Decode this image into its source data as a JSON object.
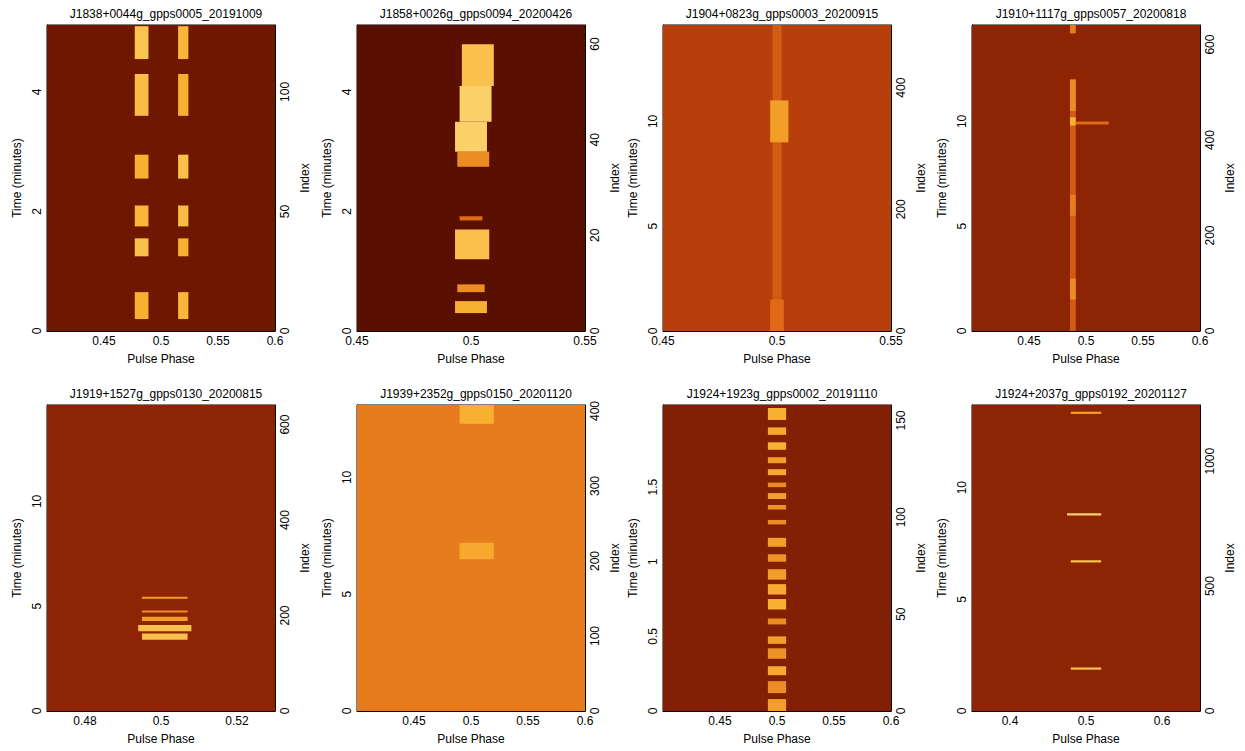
{
  "chart_data": [
    {
      "type": "heatmap",
      "title": "J1838+0044g_gpps0005_20191009",
      "xlabel": "Pulse Phase",
      "ylabel": "Time (minutes)",
      "y2label": "Index",
      "xlim": [
        0.4,
        0.6
      ],
      "xticks": [
        0.45,
        0.5,
        0.55,
        0.6
      ],
      "ylim": [
        0,
        5.12
      ],
      "yticks": [
        0,
        2,
        4
      ],
      "y2lim": [
        0,
        128
      ],
      "y2ticks": [
        0,
        50,
        100
      ],
      "zlim": [
        0,
        1
      ],
      "cells": [
        [
          0.4,
          0.6,
          0,
          5.12,
          0.25
        ],
        [
          0.477,
          0.489,
          0.2,
          0.65,
          0.8
        ],
        [
          0.515,
          0.524,
          0.2,
          0.65,
          0.82
        ],
        [
          0.477,
          0.489,
          1.25,
          1.55,
          0.85
        ],
        [
          0.515,
          0.524,
          1.25,
          1.55,
          0.8
        ],
        [
          0.477,
          0.489,
          1.75,
          2.1,
          0.82
        ],
        [
          0.515,
          0.524,
          1.75,
          2.1,
          0.84
        ],
        [
          0.477,
          0.489,
          2.55,
          2.95,
          0.8
        ],
        [
          0.515,
          0.524,
          2.55,
          2.95,
          0.85
        ],
        [
          0.477,
          0.489,
          3.6,
          4.3,
          0.84
        ],
        [
          0.515,
          0.524,
          3.6,
          4.3,
          0.8
        ],
        [
          0.477,
          0.489,
          4.55,
          5.1,
          0.86
        ],
        [
          0.515,
          0.524,
          4.55,
          5.1,
          0.82
        ]
      ]
    },
    {
      "type": "heatmap",
      "title": "J1858+0026g_gpps0094_20200426",
      "xlabel": "Pulse Phase",
      "ylabel": "Time (minutes)",
      "y2label": "Index",
      "xlim": [
        0.45,
        0.55
      ],
      "xticks": [
        0.45,
        0.5,
        0.55
      ],
      "ylim": [
        0,
        5.12
      ],
      "yticks": [
        0,
        2,
        4
      ],
      "y2lim": [
        0,
        64
      ],
      "y2ticks": [
        0,
        20,
        40,
        60
      ],
      "zlim": [
        0,
        1
      ],
      "cells": [
        [
          0.45,
          0.55,
          0,
          5.12,
          0.2
        ],
        [
          0.493,
          0.507,
          0.3,
          0.5,
          0.8
        ],
        [
          0.494,
          0.506,
          0.65,
          0.78,
          0.7
        ],
        [
          0.493,
          0.508,
          1.2,
          1.7,
          0.85
        ],
        [
          0.495,
          0.505,
          1.85,
          1.92,
          0.6
        ],
        [
          0.494,
          0.508,
          2.75,
          3.0,
          0.7
        ],
        [
          0.493,
          0.507,
          3.0,
          3.5,
          0.9
        ],
        [
          0.495,
          0.509,
          3.5,
          4.1,
          0.9
        ],
        [
          0.496,
          0.51,
          4.1,
          4.8,
          0.85
        ]
      ]
    },
    {
      "type": "heatmap",
      "title": "J1904+0823g_gpps0003_20200915",
      "xlabel": "Pulse Phase",
      "ylabel": "Time (minutes)",
      "y2label": "Index",
      "xlim": [
        0.45,
        0.55
      ],
      "xticks": [
        0.45,
        0.5,
        0.55
      ],
      "ylim": [
        0,
        14.6
      ],
      "yticks": [
        0,
        5,
        10
      ],
      "y2lim": [
        0,
        503
      ],
      "y2ticks": [
        0,
        200,
        400
      ],
      "zlim": [
        0,
        1
      ],
      "cells": [
        [
          0.45,
          0.55,
          0,
          14.6,
          0.45
        ],
        [
          0.498,
          0.502,
          0,
          14.6,
          0.55
        ],
        [
          0.497,
          0.503,
          0,
          1.5,
          0.6
        ],
        [
          0.497,
          0.505,
          9.0,
          11.0,
          0.75
        ]
      ]
    },
    {
      "type": "heatmap",
      "title": "J1910+1117g_gpps0057_20200818",
      "xlabel": "Pulse Phase",
      "ylabel": "Time (minutes)",
      "y2label": "Index",
      "xlim": [
        0.4,
        0.6
      ],
      "xticks": [
        0.45,
        0.5,
        0.55,
        0.6
      ],
      "ylim": [
        0,
        14.6
      ],
      "yticks": [
        0,
        5,
        10
      ],
      "y2lim": [
        0,
        641
      ],
      "y2ticks": [
        0,
        200,
        400,
        600
      ],
      "zlim": [
        0,
        1
      ],
      "cells": [
        [
          0.4,
          0.6,
          0,
          14.6,
          0.33
        ],
        [
          0.486,
          0.491,
          0,
          12.0,
          0.55
        ],
        [
          0.486,
          0.491,
          1.5,
          2.5,
          0.7
        ],
        [
          0.486,
          0.491,
          5.5,
          6.5,
          0.65
        ],
        [
          0.486,
          0.491,
          9.8,
          10.2,
          0.8
        ],
        [
          0.491,
          0.52,
          9.85,
          10.0,
          0.6
        ],
        [
          0.486,
          0.491,
          10.5,
          12.0,
          0.7
        ],
        [
          0.486,
          0.491,
          14.2,
          14.6,
          0.65
        ]
      ]
    },
    {
      "type": "heatmap",
      "title": "J1919+1527g_gpps0130_20200815",
      "xlabel": "Pulse Phase",
      "ylabel": "Time (minutes)",
      "y2label": "Index",
      "xlim": [
        0.47,
        0.53
      ],
      "xticks": [
        0.48,
        0.5,
        0.52
      ],
      "ylim": [
        0,
        14.6
      ],
      "yticks": [
        0,
        5,
        10
      ],
      "y2lim": [
        0,
        641
      ],
      "y2ticks": [
        0,
        200,
        400,
        600
      ],
      "zlim": [
        0,
        1
      ],
      "cells": [
        [
          0.47,
          0.53,
          0,
          14.6,
          0.33
        ],
        [
          0.495,
          0.507,
          3.4,
          3.7,
          0.85
        ],
        [
          0.494,
          0.508,
          3.8,
          4.1,
          0.85
        ],
        [
          0.495,
          0.507,
          4.3,
          4.5,
          0.75
        ],
        [
          0.495,
          0.507,
          4.7,
          4.8,
          0.7
        ],
        [
          0.495,
          0.507,
          5.35,
          5.45,
          0.75
        ]
      ]
    },
    {
      "type": "heatmap",
      "title": "J1939+2352g_gpps0150_20201120",
      "xlabel": "Pulse Phase",
      "ylabel": "Time (minutes)",
      "y2label": "Index",
      "xlim": [
        0.4,
        0.6
      ],
      "xticks": [
        0.45,
        0.5,
        0.55,
        0.6
      ],
      "ylim": [
        0,
        13.1
      ],
      "yticks": [
        0,
        5,
        10
      ],
      "y2lim": [
        0,
        408
      ],
      "y2ticks": [
        0,
        100,
        200,
        300,
        400
      ],
      "zlim": [
        0,
        1
      ],
      "cells": [
        [
          0.4,
          0.6,
          0,
          13.1,
          0.65
        ],
        [
          0.49,
          0.52,
          6.5,
          7.2,
          0.78
        ],
        [
          0.49,
          0.52,
          12.3,
          13.1,
          0.8
        ]
      ]
    },
    {
      "type": "heatmap",
      "title": "J1924+1923g_gpps0002_20191110",
      "xlabel": "Pulse Phase",
      "ylabel": "Time (minutes)",
      "y2label": "Index",
      "xlim": [
        0.4,
        0.6
      ],
      "xticks": [
        0.45,
        0.5,
        0.55,
        0.6
      ],
      "ylim": [
        0,
        2.05
      ],
      "yticks": [
        0,
        0.5,
        1,
        1.5
      ],
      "y2lim": [
        0,
        158
      ],
      "y2ticks": [
        0,
        50,
        100,
        150
      ],
      "zlim": [
        0,
        1
      ],
      "cells": [
        [
          0.4,
          0.6,
          0,
          2.05,
          0.3
        ],
        [
          0.492,
          0.508,
          0.0,
          0.08,
          0.75
        ],
        [
          0.492,
          0.508,
          0.12,
          0.2,
          0.7
        ],
        [
          0.492,
          0.508,
          0.24,
          0.3,
          0.78
        ],
        [
          0.492,
          0.508,
          0.35,
          0.42,
          0.72
        ],
        [
          0.492,
          0.508,
          0.45,
          0.5,
          0.75
        ],
        [
          0.492,
          0.508,
          0.58,
          0.62,
          0.7
        ],
        [
          0.492,
          0.508,
          0.68,
          0.75,
          0.8
        ],
        [
          0.492,
          0.508,
          0.78,
          0.85,
          0.78
        ],
        [
          0.492,
          0.508,
          0.88,
          0.95,
          0.75
        ],
        [
          0.492,
          0.508,
          1.0,
          1.05,
          0.72
        ],
        [
          0.492,
          0.508,
          1.1,
          1.16,
          0.75
        ],
        [
          0.492,
          0.508,
          1.25,
          1.28,
          0.7
        ],
        [
          0.492,
          0.508,
          1.35,
          1.38,
          0.72
        ],
        [
          0.492,
          0.508,
          1.42,
          1.46,
          0.75
        ],
        [
          0.492,
          0.508,
          1.5,
          1.53,
          0.7
        ],
        [
          0.492,
          0.508,
          1.58,
          1.62,
          0.78
        ],
        [
          0.492,
          0.508,
          1.66,
          1.7,
          0.75
        ],
        [
          0.492,
          0.508,
          1.75,
          1.8,
          0.8
        ],
        [
          0.492,
          0.508,
          1.85,
          1.9,
          0.78
        ],
        [
          0.492,
          0.508,
          1.95,
          2.03,
          0.8
        ]
      ]
    },
    {
      "type": "heatmap",
      "title": "J1924+2037g_gpps0192_20201127",
      "xlabel": "Pulse Phase",
      "ylabel": "Time (minutes)",
      "y2label": "Index",
      "xlim": [
        0.35,
        0.65
      ],
      "xticks": [
        0.4,
        0.5,
        0.6
      ],
      "ylim": [
        0,
        13.7
      ],
      "yticks": [
        0,
        5,
        10
      ],
      "y2lim": [
        0,
        1225
      ],
      "y2ticks": [
        0,
        500,
        1000
      ],
      "zlim": [
        0,
        1
      ],
      "cells": [
        [
          0.35,
          0.65,
          0,
          13.7,
          0.33
        ],
        [
          0.48,
          0.52,
          1.85,
          1.95,
          0.85
        ],
        [
          0.48,
          0.52,
          6.65,
          6.75,
          0.85
        ],
        [
          0.475,
          0.52,
          8.75,
          8.85,
          0.9
        ],
        [
          0.48,
          0.52,
          13.3,
          13.4,
          0.75
        ]
      ]
    }
  ]
}
